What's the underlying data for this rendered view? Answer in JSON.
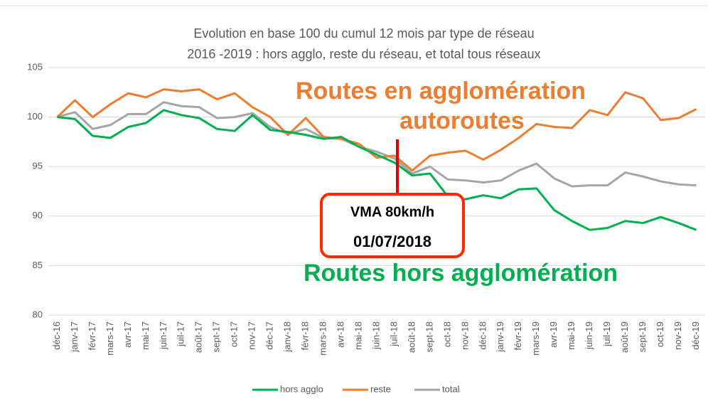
{
  "chart_data": {
    "type": "line",
    "title": [
      "Evolution en base 100 du cumul 12 mois par type de réseau",
      "2016 -2019 : hors agglo, reste du réseau, et total tous réseaux"
    ],
    "categories": [
      "déc-16",
      "janv-17",
      "févr-17",
      "mars-17",
      "avr-17",
      "mai-17",
      "juin-17",
      "juil-17",
      "août-17",
      "sept-17",
      "oct-17",
      "nov-17",
      "déc-17",
      "janv-18",
      "févr-18",
      "mars-18",
      "avr-18",
      "mai-18",
      "juin-18",
      "juil-18",
      "août-18",
      "sept-18",
      "oct-18",
      "nov-18",
      "déc-18",
      "janv-19",
      "févr-19",
      "mars-19",
      "avr-19",
      "mai-19",
      "juin-19",
      "juil-19",
      "août-19",
      "sept-19",
      "oct-19",
      "nov-19",
      "déc-19"
    ],
    "series": [
      {
        "name": "hors agglo",
        "color": "#00b050",
        "values": [
          100,
          99.8,
          98.1,
          97.9,
          99.0,
          99.4,
          100.7,
          100.2,
          99.9,
          98.8,
          98.6,
          100.2,
          98.7,
          98.5,
          98.2,
          97.8,
          98.0,
          97.0,
          96.2,
          95.4,
          94.1,
          94.3,
          92.0,
          91.7,
          92.1,
          91.8,
          92.7,
          92.8,
          90.6,
          89.5,
          88.6,
          88.8,
          89.5,
          89.3,
          89.9,
          89.3,
          88.6
        ]
      },
      {
        "name": "reste",
        "color": "#ed7d31",
        "values": [
          100,
          101.7,
          100,
          101.3,
          102.4,
          102.0,
          102.8,
          102.6,
          102.8,
          101.8,
          102.4,
          101.0,
          100.0,
          98.2,
          99.9,
          98.0,
          97.8,
          97.3,
          95.9,
          96.1,
          94.6,
          96.1,
          96.4,
          96.6,
          95.7,
          96.7,
          97.9,
          99.3,
          99.0,
          98.9,
          100.7,
          100.2,
          102.5,
          101.9,
          99.7,
          99.9,
          100.8
        ]
      },
      {
        "name": "total",
        "color": "#a5a5a5",
        "values": [
          100,
          100.5,
          98.8,
          99.2,
          100.3,
          100.3,
          101.5,
          101.1,
          101.0,
          99.9,
          100.0,
          100.4,
          99.0,
          98.3,
          98.8,
          97.9,
          97.8,
          97.0,
          96.5,
          95.8,
          94.3,
          95.0,
          93.7,
          93.6,
          93.4,
          93.6,
          94.6,
          95.3,
          93.8,
          93.0,
          93.1,
          93.1,
          94.4,
          94.0,
          93.5,
          93.2,
          93.1
        ]
      }
    ],
    "ylim": [
      80,
      105
    ],
    "yticks": [
      80,
      85,
      90,
      95,
      100,
      105
    ],
    "grid": true,
    "legend": "bottom",
    "annotations": [
      "Routes en agglomération",
      "autoroutes",
      "VMA 80km/h",
      "01/07/2018",
      "Routes hors agglomération"
    ]
  }
}
